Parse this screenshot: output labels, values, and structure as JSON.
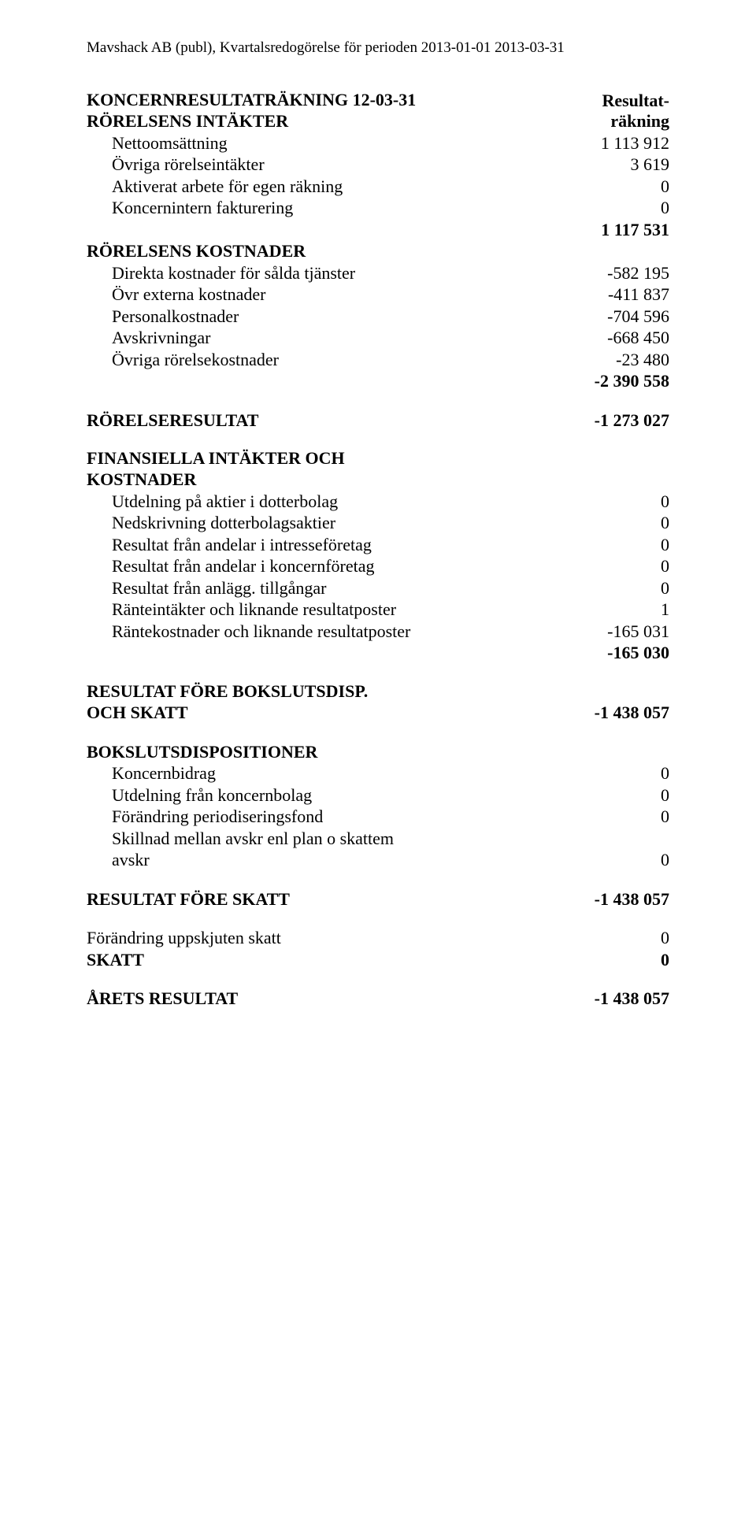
{
  "doc_header": "Mavshack AB (publ), Kvartalsredogörelse för perioden 2013-01-01 2013-03-31",
  "main_title": "KONCERNRESULTATRÄKNING 12-03-31",
  "rr_label_top": "Resultat-",
  "rr_label_bottom": "räkning",
  "sections": {
    "intakter": {
      "heading": "RÖRELSENS INTÄKTER",
      "rows": [
        {
          "label": "Nettoomsättning",
          "value": "1 113 912"
        },
        {
          "label": "Övriga rörelseintäkter",
          "value": "3 619"
        },
        {
          "label": "Aktiverat arbete för egen räkning",
          "value": "0"
        },
        {
          "label": "Koncernintern fakturering",
          "value": "0"
        }
      ],
      "subtotal": "1 117 531"
    },
    "kostnader": {
      "heading": "RÖRELSENS KOSTNADER",
      "rows": [
        {
          "label": "Direkta kostnader för sålda tjänster",
          "value": "-582 195"
        },
        {
          "label": "Övr externa kostnader",
          "value": "-411 837"
        },
        {
          "label": "Personalkostnader",
          "value": "-704 596"
        },
        {
          "label": "Avskrivningar",
          "value": "-668 450"
        },
        {
          "label": "Övriga rörelsekostnader",
          "value": "-23 480"
        }
      ],
      "subtotal": "-2 390 558"
    },
    "rorelseresultat": {
      "label": "RÖRELSERESULTAT",
      "value": "-1 273 027"
    },
    "finansiella": {
      "heading1": "FINANSIELLA INTÄKTER OCH",
      "heading2": "KOSTNADER",
      "rows": [
        {
          "label": "Utdelning på aktier i dotterbolag",
          "value": "0"
        },
        {
          "label": "Nedskrivning dotterbolagsaktier",
          "value": "0"
        },
        {
          "label": "Resultat från andelar i intresseföretag",
          "value": "0"
        },
        {
          "label": "Resultat från andelar i koncernföretag",
          "value": "0"
        },
        {
          "label": "Resultat från anlägg. tillgångar",
          "value": "0"
        },
        {
          "label": "Ränteintäkter och liknande resultatposter",
          "value": "1"
        },
        {
          "label": "Räntekostnader och liknande resultatposter",
          "value": "-165 031"
        }
      ],
      "subtotal": "-165 030"
    },
    "fore_bokslut": {
      "heading1": "RESULTAT FÖRE BOKSLUTSDISP.",
      "heading2": "OCH SKATT",
      "value": "-1 438 057"
    },
    "bokslut": {
      "heading": "BOKSLUTSDISPOSITIONER",
      "rows": [
        {
          "label": "Koncernbidrag",
          "value": "0"
        },
        {
          "label": "Utdelning från koncernbolag",
          "value": "0"
        },
        {
          "label": "Förändring periodiseringsfond",
          "value": "0"
        },
        {
          "label": "Skillnad mellan avskr enl plan o skattem",
          "value": ""
        },
        {
          "label": "avskr",
          "value": "0"
        }
      ]
    },
    "fore_skatt": {
      "label": "RESULTAT FÖRE SKATT",
      "value": "-1 438 057"
    },
    "skatt_rows": [
      {
        "label": "Förändring uppskjuten skatt",
        "value": "0"
      },
      {
        "label": "SKATT",
        "value": "0",
        "bold": true
      }
    ],
    "arets": {
      "label": "ÅRETS RESULTAT",
      "value": "-1 438 057"
    }
  }
}
